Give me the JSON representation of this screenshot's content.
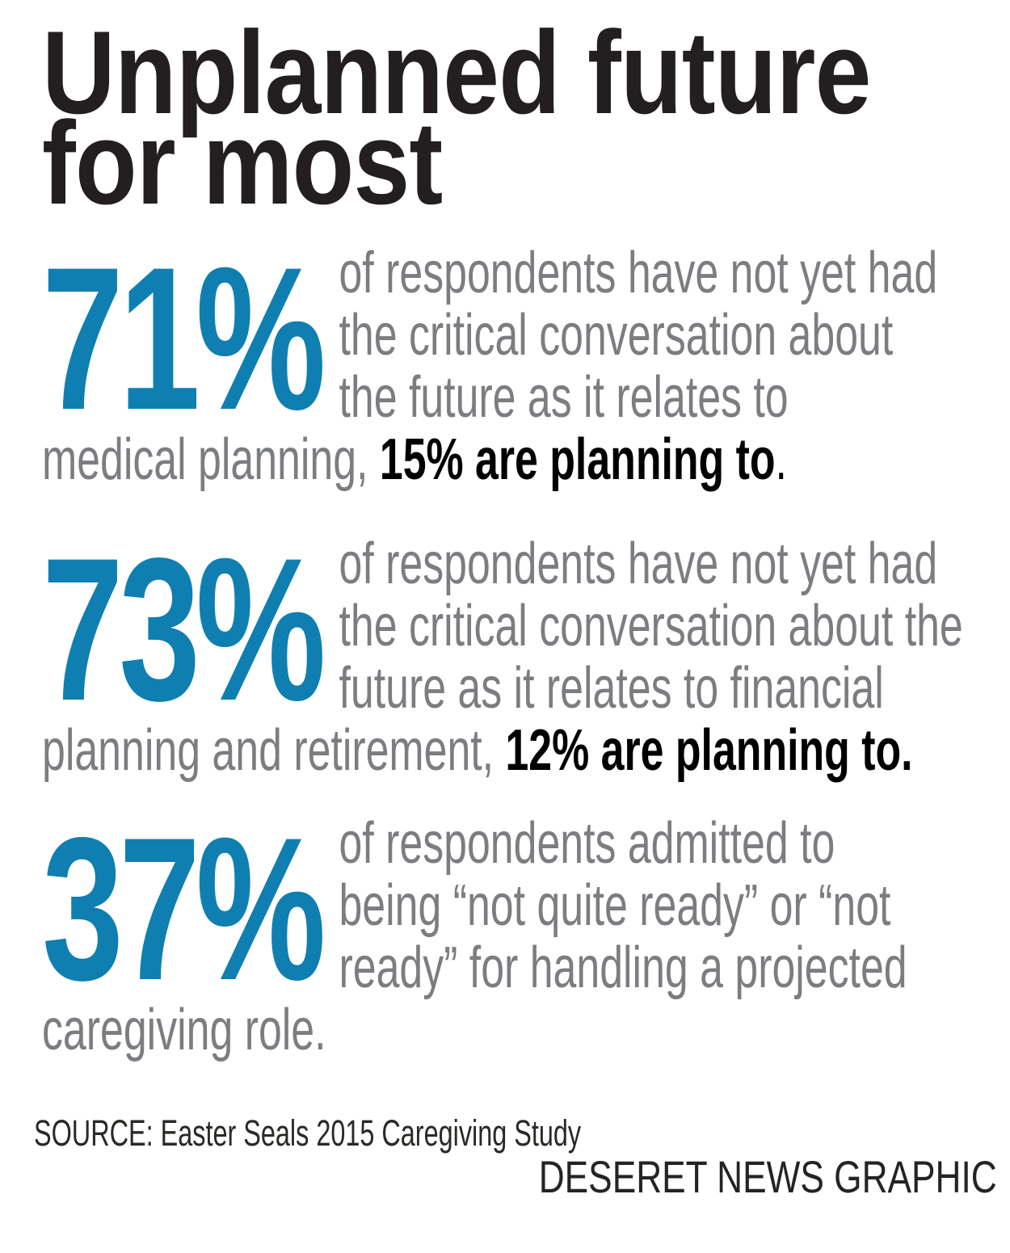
{
  "title": {
    "line1": "Unplanned future",
    "line2": "for most"
  },
  "colors": {
    "accent_blue": "#0f7fb1",
    "body_gray": "#7b7d80",
    "headline_black": "#231f20",
    "emphasis_black": "#000000"
  },
  "stats": [
    {
      "value": "71%",
      "lines": [
        "of respondents have not yet had",
        "the critical conversation about",
        "the future as it relates to"
      ],
      "tail_plain": "medical planning, ",
      "tail_bold": "15% are planning to",
      "tail_suffix": "."
    },
    {
      "value": "73%",
      "lines": [
        "of respondents have not yet had",
        "the critical conversation about the",
        "future as it relates to financial"
      ],
      "tail_plain": "planning and retirement, ",
      "tail_bold": "12% are planning to.",
      "tail_suffix": ""
    },
    {
      "value": "37%",
      "lines": [
        "of respondents admitted to",
        "being “not quite ready” or “not",
        "ready” for handling a projected"
      ],
      "tail_plain": "caregiving role.",
      "tail_bold": "",
      "tail_suffix": ""
    }
  ],
  "footer": {
    "source": "SOURCE: Easter Seals 2015 Caregiving Study",
    "credit": "DESERET NEWS GRAPHIC"
  },
  "chart_data": {
    "type": "table",
    "title": "Unplanned future for most",
    "rows": [
      {
        "percent": 71,
        "label": "of respondents have not yet had the critical conversation about the future as it relates to medical planning",
        "emphasis_percent": 15,
        "emphasis": "15% are planning to."
      },
      {
        "percent": 73,
        "label": "of respondents have not yet had the critical conversation about the future as it relates to financial planning and retirement",
        "emphasis_percent": 12,
        "emphasis": "12% are planning to."
      },
      {
        "percent": 37,
        "label": "of respondents admitted to being “not quite ready” or “not ready” for handling a projected caregiving role.",
        "emphasis_percent": null,
        "emphasis": ""
      }
    ],
    "source": "Easter Seals 2015 Caregiving Study",
    "credit": "DESERET NEWS GRAPHIC"
  }
}
